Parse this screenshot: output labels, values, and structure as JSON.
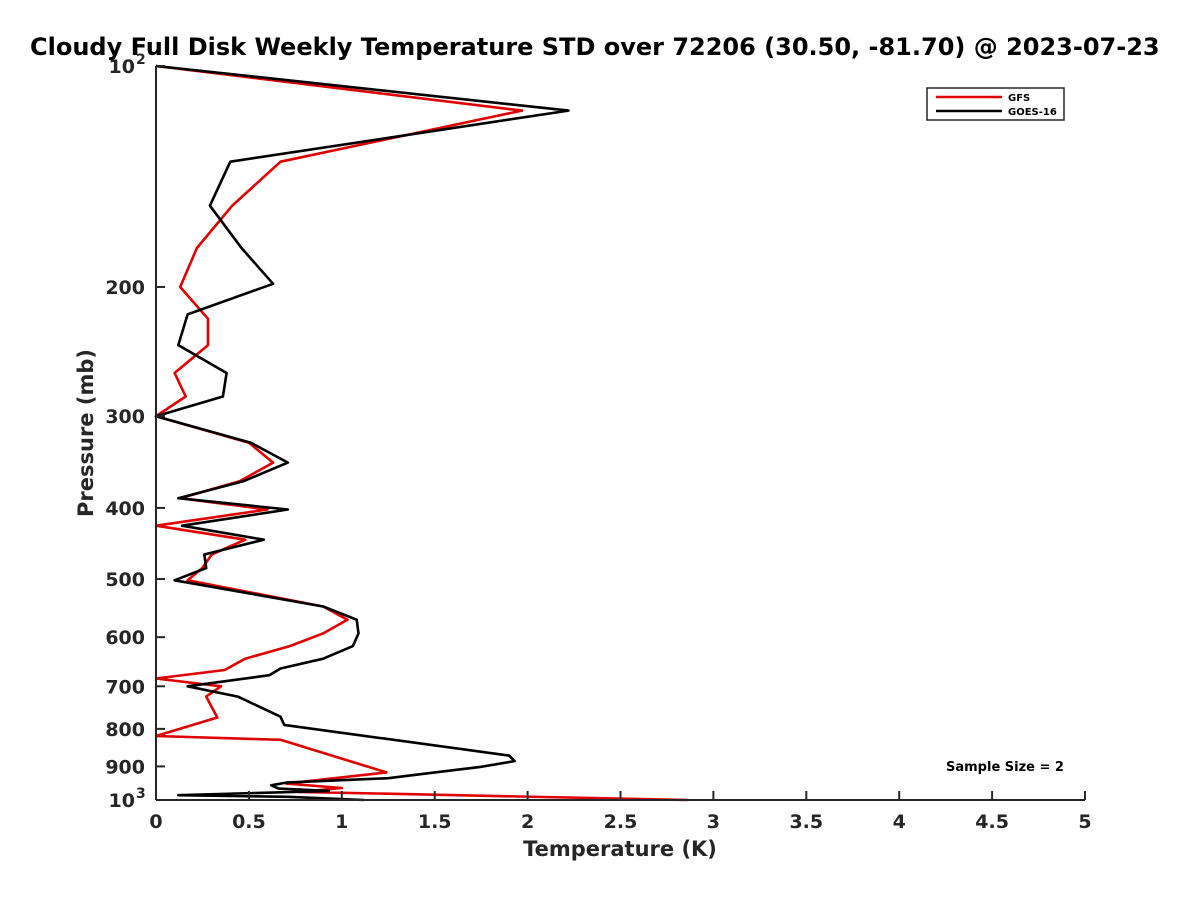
{
  "chart_data": {
    "type": "line",
    "title": "Cloudy Full Disk Weekly Temperature STD over 72206 (30.50, -81.70) @ 2023-07-23",
    "xlabel": "Temperature (K)",
    "ylabel": "Pressure (mb)",
    "xlim": [
      0,
      5
    ],
    "ylim": [
      100,
      1000
    ],
    "y_scale": "log",
    "y_reversed": true,
    "x_ticks": [
      "0",
      "0.5",
      "1",
      "1.5",
      "2",
      "2.5",
      "3",
      "3.5",
      "4",
      "4.5",
      "5"
    ],
    "y_ticks": [
      {
        "value": 100,
        "label": "10",
        "exp": "2"
      },
      {
        "value": 200,
        "label": "200"
      },
      {
        "value": 300,
        "label": "300"
      },
      {
        "value": 400,
        "label": "400"
      },
      {
        "value": 500,
        "label": "500"
      },
      {
        "value": 600,
        "label": "600"
      },
      {
        "value": 700,
        "label": "700"
      },
      {
        "value": 800,
        "label": "800"
      },
      {
        "value": 900,
        "label": "900"
      },
      {
        "value": 1000,
        "label": "10",
        "exp": "3"
      }
    ],
    "legend_position": "top-right",
    "annotation": "Sample Size = 2",
    "grid": false,
    "series": [
      {
        "name": "GFS",
        "color": "#e00000",
        "points": [
          [
            0.0,
            100
          ],
          [
            1.97,
            115
          ],
          [
            0.67,
            135
          ],
          [
            0.41,
            155
          ],
          [
            0.22,
            177
          ],
          [
            0.13,
            200
          ],
          [
            0.28,
            221
          ],
          [
            0.28,
            240
          ],
          [
            0.1,
            262
          ],
          [
            0.16,
            282
          ],
          [
            0.0,
            300
          ],
          [
            0.5,
            326
          ],
          [
            0.63,
            347
          ],
          [
            0.45,
            368
          ],
          [
            0.13,
            388
          ],
          [
            0.6,
            402
          ],
          [
            0.0,
            423
          ],
          [
            0.48,
            442
          ],
          [
            0.3,
            463
          ],
          [
            0.25,
            483
          ],
          [
            0.17,
            502
          ],
          [
            0.9,
            545
          ],
          [
            1.03,
            568
          ],
          [
            0.9,
            593
          ],
          [
            0.72,
            617
          ],
          [
            0.48,
            642
          ],
          [
            0.37,
            665
          ],
          [
            0.0,
            683
          ],
          [
            0.35,
            700
          ],
          [
            0.27,
            723
          ],
          [
            0.33,
            772
          ],
          [
            0.0,
            818
          ],
          [
            0.67,
            828
          ],
          [
            1.24,
            917
          ],
          [
            0.7,
            950
          ],
          [
            1.0,
            963
          ],
          [
            0.77,
            975
          ],
          [
            2.86,
            1000
          ]
        ]
      },
      {
        "name": "GOES-16",
        "color": "#000000",
        "points": [
          [
            0.0,
            100
          ],
          [
            2.22,
            115
          ],
          [
            0.4,
            135
          ],
          [
            0.29,
            155
          ],
          [
            0.46,
            177
          ],
          [
            0.63,
            198
          ],
          [
            0.17,
            218
          ],
          [
            0.12,
            240
          ],
          [
            0.38,
            262
          ],
          [
            0.36,
            282
          ],
          [
            0.0,
            300
          ],
          [
            0.51,
            326
          ],
          [
            0.71,
            347
          ],
          [
            0.47,
            368
          ],
          [
            0.12,
            388
          ],
          [
            0.71,
            402
          ],
          [
            0.14,
            423
          ],
          [
            0.58,
            442
          ],
          [
            0.26,
            463
          ],
          [
            0.27,
            483
          ],
          [
            0.1,
            502
          ],
          [
            0.9,
            545
          ],
          [
            1.08,
            568
          ],
          [
            1.09,
            593
          ],
          [
            1.06,
            617
          ],
          [
            0.9,
            642
          ],
          [
            0.67,
            662
          ],
          [
            0.61,
            676
          ],
          [
            0.17,
            700
          ],
          [
            0.44,
            723
          ],
          [
            0.67,
            770
          ],
          [
            0.69,
            790
          ],
          [
            1.9,
            870
          ],
          [
            1.93,
            885
          ],
          [
            1.74,
            902
          ],
          [
            1.5,
            917
          ],
          [
            1.25,
            934
          ],
          [
            0.7,
            947
          ],
          [
            0.62,
            955
          ],
          [
            0.66,
            965
          ],
          [
            0.93,
            972
          ],
          [
            0.12,
            985
          ],
          [
            0.71,
            990
          ],
          [
            1.12,
            1000
          ]
        ]
      }
    ]
  }
}
